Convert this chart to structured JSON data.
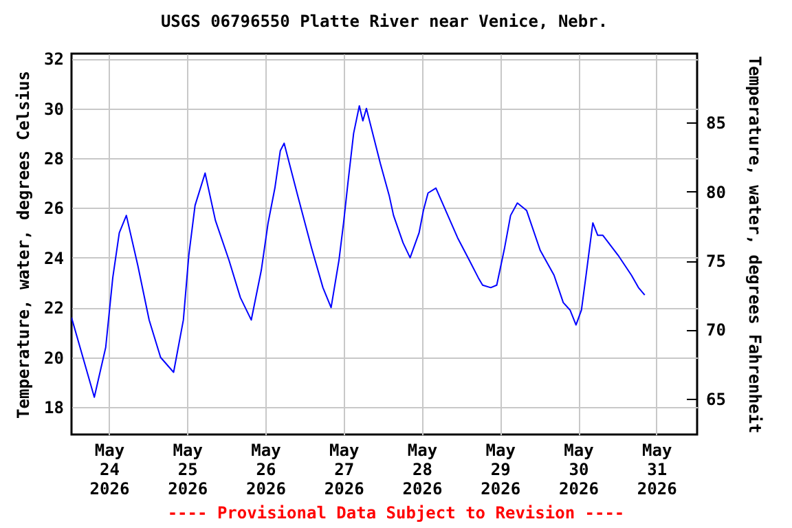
{
  "chart_data": {
    "type": "line",
    "title": "USGS 06796550 Platte River near Venice, Nebr.",
    "ylabel": "Temperature, water, degrees Celsius",
    "y2label": "Temperature, water, degrees Fahrenheit",
    "annotations": [
      "---- Provisional Data Subject to Revision ----"
    ],
    "x": [
      "2026-05-23T12:30",
      "2026-05-23T19:30",
      "2026-05-23T23:00",
      "2026-05-24T01:10",
      "2026-05-24T03:10",
      "2026-05-24T05:20",
      "2026-05-24T08:50",
      "2026-05-24T12:20",
      "2026-05-24T15:50",
      "2026-05-24T19:50",
      "2026-05-24T22:50",
      "2026-05-25T00:30",
      "2026-05-25T02:25",
      "2026-05-25T05:30",
      "2026-05-25T08:40",
      "2026-05-25T12:50",
      "2026-05-25T16:20",
      "2026-05-25T19:40",
      "2026-05-25T22:45",
      "2026-05-26T00:50",
      "2026-05-26T02:55",
      "2026-05-26T04:35",
      "2026-05-26T05:45",
      "2026-05-26T09:55",
      "2026-05-26T14:10",
      "2026-05-26T17:40",
      "2026-05-26T20:10",
      "2026-05-26T22:35",
      "2026-05-27T00:00",
      "2026-05-27T01:25",
      "2026-05-27T03:05",
      "2026-05-27T04:50",
      "2026-05-27T05:55",
      "2026-05-27T07:00",
      "2026-05-27T11:15",
      "2026-05-27T14:00",
      "2026-05-27T15:20",
      "2026-05-27T18:15",
      "2026-05-27T20:25",
      "2026-05-27T23:10",
      "2026-05-28T00:30",
      "2026-05-28T01:55",
      "2026-05-28T04:20",
      "2026-05-28T11:00",
      "2026-05-28T14:35",
      "2026-05-28T17:20",
      "2026-05-28T18:40",
      "2026-05-28T21:10",
      "2026-05-28T23:00",
      "2026-05-29T01:25",
      "2026-05-29T03:15",
      "2026-05-29T05:20",
      "2026-05-29T08:10",
      "2026-05-29T12:20",
      "2026-05-29T16:35",
      "2026-05-29T19:25",
      "2026-05-29T21:30",
      "2026-05-29T23:20",
      "2026-05-30T01:00",
      "2026-05-30T02:25",
      "2026-05-30T03:30",
      "2026-05-30T04:30",
      "2026-05-30T06:00",
      "2026-05-30T07:35",
      "2026-05-30T12:15",
      "2026-05-30T16:20",
      "2026-05-30T18:30",
      "2026-05-30T20:25"
    ],
    "series": [
      {
        "color": "#0000ff",
        "values": [
          21.6,
          18.4,
          20.4,
          23.2,
          25.0,
          25.7,
          23.7,
          21.5,
          20.0,
          19.4,
          21.5,
          24.1,
          26.1,
          27.4,
          25.5,
          23.9,
          22.4,
          21.5,
          23.5,
          25.4,
          26.8,
          28.3,
          28.6,
          26.5,
          24.4,
          22.8,
          22.0,
          23.9,
          25.4,
          27.1,
          29.0,
          30.1,
          29.5,
          30.0,
          27.8,
          26.5,
          25.7,
          24.6,
          24.0,
          25.0,
          25.9,
          26.6,
          26.8,
          24.8,
          23.9,
          23.2,
          22.9,
          22.8,
          22.9,
          24.4,
          25.7,
          26.2,
          25.9,
          24.3,
          23.3,
          22.2,
          21.9,
          21.3,
          21.9,
          23.3,
          24.4,
          25.4,
          24.9,
          24.9,
          24.1,
          23.3,
          22.8,
          22.5
        ]
      }
    ],
    "xlim": [
      "2026-05-23T12:30",
      "2026-05-31T12:30"
    ],
    "xticks": [
      {
        "value": "2026-05-24",
        "label": "May 24 2026"
      },
      {
        "value": "2026-05-25",
        "label": "May 25 2026"
      },
      {
        "value": "2026-05-26",
        "label": "May 26 2026"
      },
      {
        "value": "2026-05-27",
        "label": "May 27 2026"
      },
      {
        "value": "2026-05-28",
        "label": "May 28 2026"
      },
      {
        "value": "2026-05-29",
        "label": "May 29 2026"
      },
      {
        "value": "2026-05-30",
        "label": "May 30 2026"
      },
      {
        "value": "2026-05-31",
        "label": "May 31 2026"
      }
    ],
    "ylim": [
      16.9,
      32.2
    ],
    "yticks": [
      18,
      20,
      22,
      24,
      26,
      28,
      30,
      32
    ],
    "y2lim": [
      62.4,
      90.0
    ],
    "y2ticks": [
      65,
      70,
      75,
      80,
      85
    ],
    "grid": true
  }
}
